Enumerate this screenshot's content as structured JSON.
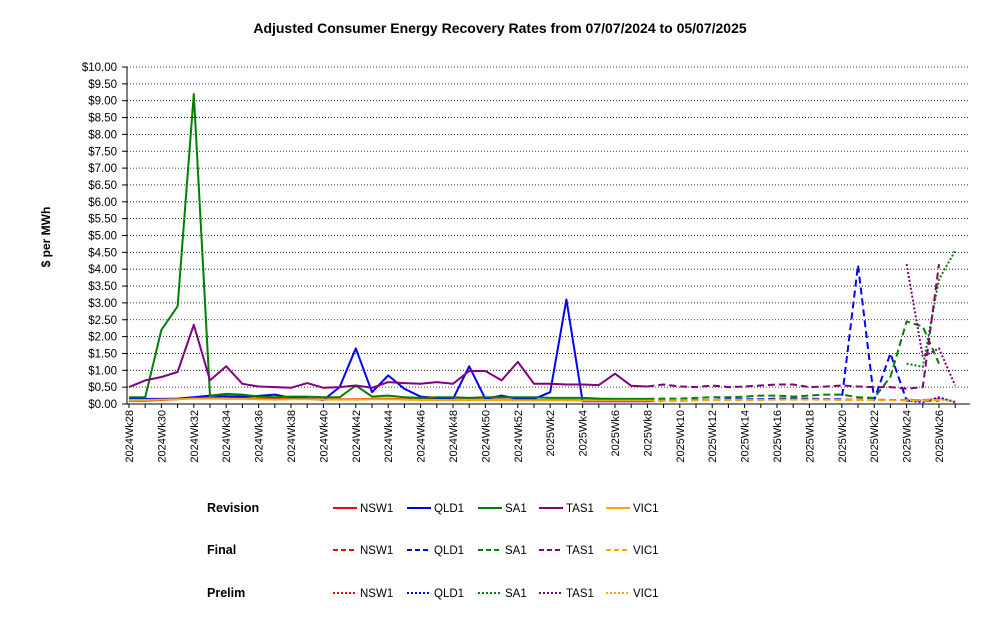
{
  "chart_data": {
    "type": "line",
    "title": "Adjusted Consumer Energy Recovery Rates from 07/07/2024 to 05/07/2025",
    "ylabel": "$ per MWh",
    "xlabel": "",
    "ylim": [
      0,
      10
    ],
    "grid": "horizontal-dotted",
    "yticks": [
      "$0.00",
      "$0.50",
      "$1.00",
      "$1.50",
      "$2.00",
      "$2.50",
      "$3.00",
      "$3.50",
      "$4.00",
      "$4.50",
      "$5.00",
      "$5.50",
      "$6.00",
      "$6.50",
      "$7.00",
      "$7.50",
      "$8.00",
      "$8.50",
      "$9.00",
      "$9.50",
      "$10.00"
    ],
    "ytick_values": [
      0,
      0.5,
      1,
      1.5,
      2,
      2.5,
      3,
      3.5,
      4,
      4.5,
      5,
      5.5,
      6,
      6.5,
      7,
      7.5,
      8,
      8.5,
      9,
      9.5,
      10
    ],
    "x_labels": [
      "2024Wk28",
      "2024Wk30",
      "2024Wk32",
      "2024Wk34",
      "2024Wk36",
      "2024Wk38",
      "2024Wk40",
      "2024Wk42",
      "2024Wk44",
      "2024Wk46",
      "2024Wk48",
      "2024Wk50",
      "2024Wk52",
      "2025Wk2",
      "2025Wk4",
      "2025Wk6",
      "2025Wk8",
      "2025Wk10",
      "2025Wk12",
      "2025Wk14",
      "2025Wk16",
      "2025Wk18",
      "2025Wk20",
      "2025Wk22",
      "2025Wk24",
      "2025Wk26"
    ],
    "x_weeks": [
      "2024Wk28",
      "2024Wk29",
      "2024Wk30",
      "2024Wk31",
      "2024Wk32",
      "2024Wk33",
      "2024Wk34",
      "2024Wk35",
      "2024Wk36",
      "2024Wk37",
      "2024Wk38",
      "2024Wk39",
      "2024Wk40",
      "2024Wk41",
      "2024Wk42",
      "2024Wk43",
      "2024Wk44",
      "2024Wk45",
      "2024Wk46",
      "2024Wk47",
      "2024Wk48",
      "2024Wk49",
      "2024Wk50",
      "2024Wk51",
      "2024Wk52",
      "2025Wk1",
      "2025Wk2",
      "2025Wk3",
      "2025Wk4",
      "2025Wk5",
      "2025Wk6",
      "2025Wk7",
      "2025Wk8",
      "2025Wk9",
      "2025Wk10",
      "2025Wk11",
      "2025Wk12",
      "2025Wk13",
      "2025Wk14",
      "2025Wk15",
      "2025Wk16",
      "2025Wk17",
      "2025Wk18",
      "2025Wk19",
      "2025Wk20",
      "2025Wk21",
      "2025Wk22",
      "2025Wk23",
      "2025Wk24",
      "2025Wk25",
      "2025Wk26",
      "2025Wk27"
    ],
    "legend": {
      "groups": [
        {
          "name": "Revision",
          "style": "solid"
        },
        {
          "name": "Final",
          "style": "dashed"
        },
        {
          "name": "Prelim",
          "style": "dotted"
        }
      ],
      "regions": [
        {
          "name": "NSW1",
          "color": "#ff0000"
        },
        {
          "name": "QLD1",
          "color": "#0000ff"
        },
        {
          "name": "SA1",
          "color": "#008000"
        },
        {
          "name": "TAS1",
          "color": "#800080"
        },
        {
          "name": "VIC1",
          "color": "#ffa500"
        }
      ]
    },
    "series": [
      {
        "region": "NSW1",
        "type": "Revision",
        "start": 0,
        "values": [
          0.1,
          0.1,
          0.12,
          0.14,
          0.18,
          0.18,
          0.17,
          0.17,
          0.16,
          0.15,
          0.16,
          0.15,
          0.14,
          0.14,
          0.14,
          0.15,
          0.16,
          0.14,
          0.14,
          0.13,
          0.13,
          0.13,
          0.13,
          0.13,
          0.12,
          0.12,
          0.12,
          0.12,
          0.11,
          0.11,
          0.1,
          0.1,
          0.11
        ]
      },
      {
        "region": "NSW1",
        "type": "Final",
        "start": 32,
        "values": [
          0.11,
          0.11,
          0.11,
          0.12,
          0.12,
          0.13,
          0.13,
          0.13,
          0.14,
          0.14,
          0.14,
          0.14,
          0.13,
          0.13,
          0.13,
          0.12,
          0.12,
          0.12,
          0.14
        ]
      },
      {
        "region": "NSW1",
        "type": "Prelim",
        "start": 48,
        "values": [
          0.14,
          0.1,
          0.15,
          0.08
        ]
      },
      {
        "region": "QLD1",
        "type": "Revision",
        "start": 0,
        "values": [
          0.18,
          0.15,
          0.15,
          0.16,
          0.2,
          0.25,
          0.23,
          0.22,
          0.24,
          0.28,
          0.18,
          0.16,
          0.12,
          0.5,
          1.65,
          0.35,
          0.85,
          0.45,
          0.22,
          0.18,
          0.15,
          1.12,
          0.15,
          0.25,
          0.15,
          0.15,
          0.35,
          3.1,
          0.08,
          0.08,
          0.08,
          0.08,
          0.08
        ]
      },
      {
        "region": "QLD1",
        "type": "Final",
        "start": 32,
        "values": [
          0.08,
          0.1,
          0.1,
          0.12,
          0.12,
          0.14,
          0.14,
          0.14,
          0.16,
          0.16,
          0.16,
          0.14,
          0.14,
          4.12,
          0.12,
          1.5,
          0.1,
          0.1,
          0.1
        ]
      },
      {
        "region": "QLD1",
        "type": "Prelim",
        "start": 48,
        "values": [
          0.1,
          0.05,
          0.2,
          0.05
        ]
      },
      {
        "region": "SA1",
        "type": "Revision",
        "start": 0,
        "values": [
          0.2,
          0.2,
          2.2,
          2.9,
          9.2,
          0.25,
          0.3,
          0.28,
          0.22,
          0.2,
          0.22,
          0.22,
          0.2,
          0.2,
          0.55,
          0.22,
          0.25,
          0.2,
          0.18,
          0.2,
          0.2,
          0.18,
          0.2,
          0.2,
          0.2,
          0.2,
          0.18,
          0.18,
          0.18,
          0.16,
          0.15,
          0.15,
          0.15
        ]
      },
      {
        "region": "SA1",
        "type": "Final",
        "start": 32,
        "values": [
          0.15,
          0.16,
          0.16,
          0.18,
          0.2,
          0.2,
          0.22,
          0.25,
          0.25,
          0.22,
          0.25,
          0.28,
          0.28,
          0.2,
          0.18,
          0.8,
          2.45,
          2.3,
          1.2
        ]
      },
      {
        "region": "SA1",
        "type": "Prelim",
        "start": 48,
        "values": [
          1.2,
          1.1,
          3.7,
          4.55
        ]
      },
      {
        "region": "TAS1",
        "type": "Revision",
        "start": 0,
        "values": [
          0.5,
          0.7,
          0.8,
          0.95,
          2.35,
          0.7,
          1.12,
          0.6,
          0.52,
          0.5,
          0.48,
          0.62,
          0.48,
          0.5,
          0.55,
          0.48,
          0.65,
          0.62,
          0.6,
          0.65,
          0.6,
          0.98,
          0.98,
          0.7,
          1.25,
          0.6,
          0.6,
          0.58,
          0.58,
          0.56,
          0.9,
          0.54,
          0.52
        ]
      },
      {
        "region": "TAS1",
        "type": "Final",
        "start": 32,
        "values": [
          0.52,
          0.58,
          0.52,
          0.5,
          0.55,
          0.5,
          0.52,
          0.55,
          0.58,
          0.58,
          0.5,
          0.52,
          0.55,
          0.52,
          0.5,
          0.5,
          0.45,
          0.5,
          4.15
        ]
      },
      {
        "region": "TAS1",
        "type": "Prelim",
        "start": 48,
        "values": [
          4.15,
          1.4,
          1.65,
          0.55
        ]
      },
      {
        "region": "VIC1",
        "type": "Revision",
        "start": 0,
        "values": [
          0.12,
          0.12,
          0.13,
          0.14,
          0.16,
          0.16,
          0.15,
          0.15,
          0.14,
          0.13,
          0.14,
          0.14,
          0.13,
          0.13,
          0.13,
          0.14,
          0.14,
          0.13,
          0.12,
          0.12,
          0.12,
          0.12,
          0.12,
          0.12,
          0.11,
          0.11,
          0.11,
          0.11,
          0.1,
          0.1,
          0.1,
          0.1,
          0.1
        ]
      },
      {
        "region": "VIC1",
        "type": "Final",
        "start": 32,
        "values": [
          0.1,
          0.1,
          0.11,
          0.11,
          0.12,
          0.12,
          0.12,
          0.12,
          0.13,
          0.13,
          0.13,
          0.13,
          0.12,
          0.12,
          0.12,
          0.11,
          0.11,
          0.11,
          0.12
        ]
      },
      {
        "region": "VIC1",
        "type": "Prelim",
        "start": 48,
        "values": [
          0.12,
          0.1,
          0.12,
          0.08
        ]
      }
    ]
  }
}
